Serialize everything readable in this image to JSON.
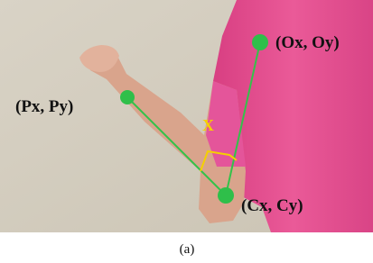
{
  "points": [
    {
      "label": "(Ox, Oy)"
    },
    {
      "label": "(Px, Py)"
    },
    {
      "label": "(Cx, Cy)"
    }
  ],
  "angle_label": "X",
  "caption": "(a)"
}
